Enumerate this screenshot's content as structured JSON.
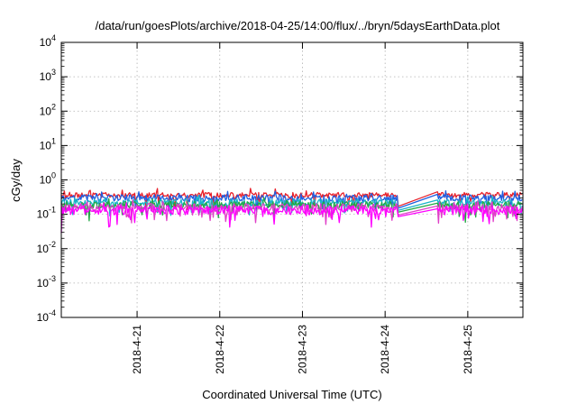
{
  "chart_data": {
    "type": "line",
    "title": "/data/run/goesPlots/archive/2018-04-25/14:00/flux/../bryn/5daysEarthData.plot",
    "xlabel": "Coordinated Universal Time (UTC)",
    "ylabel": "cGy/day",
    "yscale": "log",
    "ylim_exponent": [
      -4,
      4
    ],
    "y_tick_labels": [
      {
        "base": "10",
        "exp": "-4"
      },
      {
        "base": "10",
        "exp": "-3"
      },
      {
        "base": "10",
        "exp": "-2"
      },
      {
        "base": "10",
        "exp": "-1"
      },
      {
        "base": "10",
        "exp": "0"
      },
      {
        "base": "10",
        "exp": "1"
      },
      {
        "base": "10",
        "exp": "2"
      },
      {
        "base": "10",
        "exp": "3"
      },
      {
        "base": "10",
        "exp": "4"
      }
    ],
    "xlim": [
      "2018-04-20 02:00",
      "2018-04-25 16:00"
    ],
    "x_ticks": [
      "2018-4-21",
      "2018-4-22",
      "2018-4-23",
      "2018-4-24",
      "2018-4-25"
    ],
    "x_tick_dates": [
      "2018-04-21 00:00",
      "2018-04-22 00:00",
      "2018-04-23 00:00",
      "2018-04-24 00:00",
      "2018-04-25 00:00"
    ],
    "grid": true,
    "data_gap": [
      "2018-04-24 04:00",
      "2018-04-24 15:00"
    ],
    "series": [
      {
        "color": "#e8202a",
        "level": 0.36,
        "gap_start": 0.17,
        "gap_end": 0.45
      },
      {
        "color": "#1f5fe0",
        "level": 0.3,
        "gap_start": 0.15,
        "gap_end": 0.38
      },
      {
        "color": "#19b4c8",
        "level": 0.22,
        "gap_start": 0.13,
        "gap_end": 0.26
      },
      {
        "color": "#23a845",
        "level": 0.185,
        "gap_start": 0.115,
        "gap_end": 0.21
      },
      {
        "color": "#e040c8",
        "level": 0.155,
        "gap_start": 0.095,
        "gap_end": 0.175
      },
      {
        "color": "#ff00ff",
        "level": 0.13,
        "gap_start": 0.085,
        "gap_end": 0.145
      }
    ]
  }
}
